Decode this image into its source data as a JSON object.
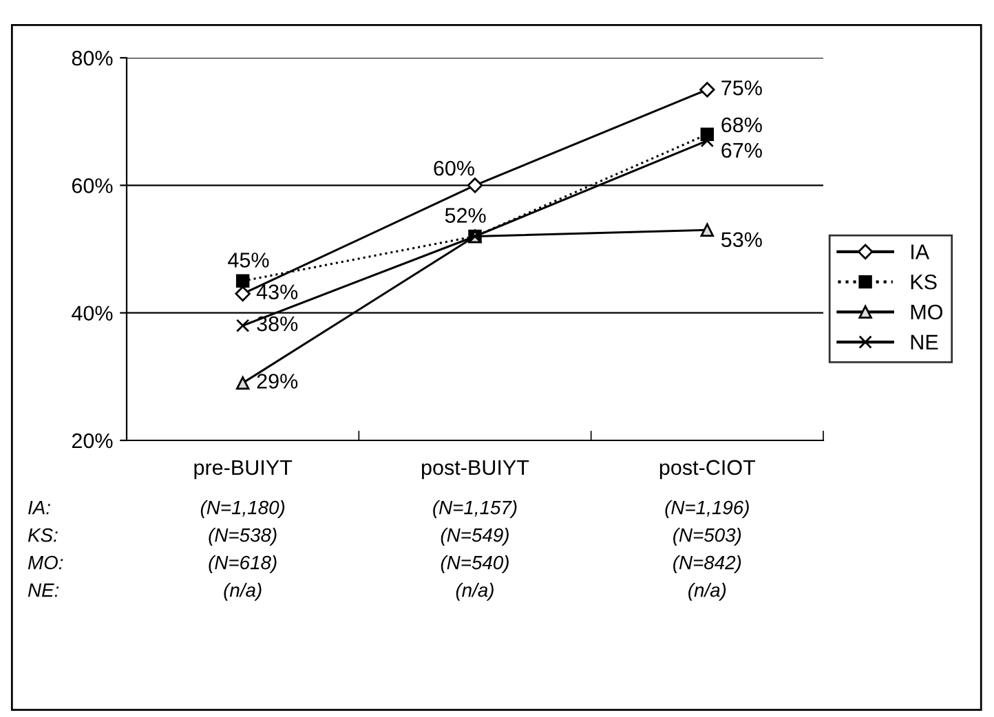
{
  "chart_data": {
    "type": "line",
    "categories": [
      "pre-BUIYT",
      "post-BUIYT",
      "post-CIOT"
    ],
    "ylim": [
      20,
      80
    ],
    "yticks": [
      {
        "value": 20,
        "label": "20%"
      },
      {
        "value": 40,
        "label": "40%"
      },
      {
        "value": 60,
        "label": "60%"
      },
      {
        "value": 80,
        "label": "80%"
      }
    ],
    "grid": "y",
    "legend": "right",
    "series": [
      {
        "name": "IA",
        "color": "#000000",
        "marker": "diamond",
        "line_style": "solid",
        "values": [
          43,
          60,
          75
        ],
        "value_labels": [
          "43%",
          "60%",
          "75%"
        ]
      },
      {
        "name": "KS",
        "color": "#000000",
        "marker": "square",
        "line_style": "dotted",
        "values": [
          45,
          52,
          68
        ],
        "value_labels": [
          "45%",
          "52%",
          "68%"
        ]
      },
      {
        "name": "MO",
        "color": "#000000",
        "marker": "triangle",
        "line_style": "solid",
        "values": [
          29,
          52,
          53
        ],
        "value_labels": [
          "29%",
          null,
          "53%"
        ]
      },
      {
        "name": "NE",
        "color": "#000000",
        "marker": "cross",
        "line_style": "solid",
        "values": [
          38,
          52,
          67
        ],
        "value_labels": [
          "38%",
          null,
          "67%"
        ]
      }
    ],
    "annotations": [
      "IA:",
      "(N=1,180)",
      "(N=1,157)",
      "(N=1,196)",
      "KS:",
      "(N=538)",
      "(N=549)",
      "(N=503)",
      "MO:",
      "(N=618)",
      "(N=540)",
      "(N=842)",
      "NE:",
      "(n/a)",
      "(n/a)",
      "(n/a)"
    ]
  }
}
